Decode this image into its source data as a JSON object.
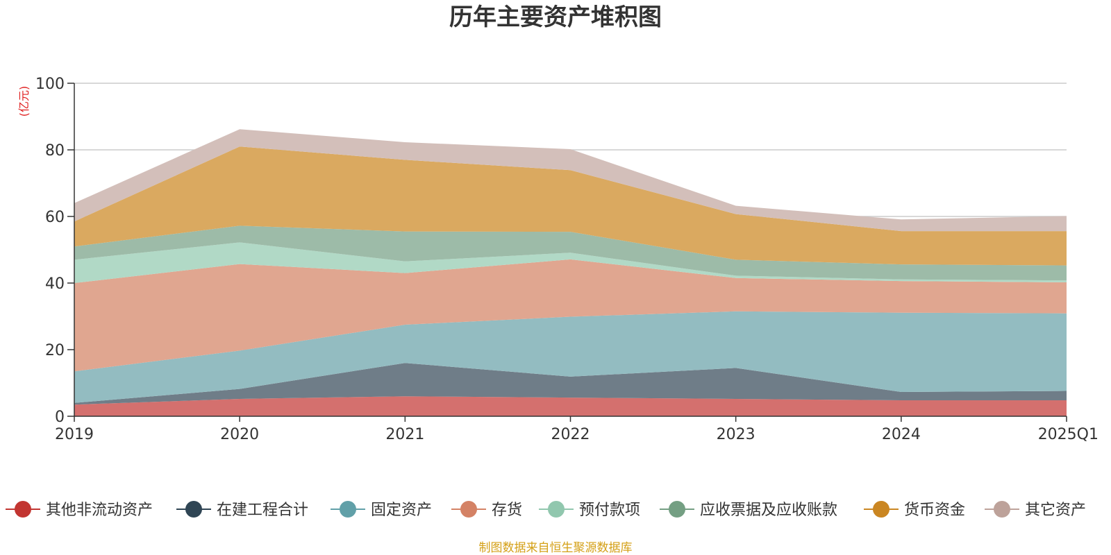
{
  "chart_data": {
    "type": "area",
    "stacked": true,
    "title": "历年主要资产堆积图",
    "unit": "(亿元)",
    "source": "制图数据来自恒生聚源数据库",
    "ylim": [
      0,
      100
    ],
    "yticks": [
      0,
      20,
      40,
      60,
      80,
      100
    ],
    "grid": true,
    "legend_position": "bottom",
    "categories": [
      "2019",
      "2020",
      "2021",
      "2022",
      "2023",
      "2024",
      "2025Q1"
    ],
    "series": [
      {
        "name": "其他非流动资产",
        "color": "#c23531",
        "fill": "#d4706e",
        "values": [
          3.5,
          5.2,
          6.0,
          5.6,
          5.2,
          4.8,
          4.8
        ]
      },
      {
        "name": "在建工程合计",
        "color": "#2f4554",
        "fill": "#6f7d88",
        "values": [
          0.5,
          3.0,
          10.0,
          6.3,
          9.3,
          2.5,
          2.8
        ]
      },
      {
        "name": "固定资产",
        "color": "#61a0a8",
        "fill": "#93bcc1",
        "values": [
          9.5,
          11.5,
          11.5,
          18.0,
          17.0,
          23.8,
          23.3
        ]
      },
      {
        "name": "存货",
        "color": "#d48265",
        "fill": "#e0a690",
        "values": [
          26.5,
          26.0,
          15.5,
          17.2,
          10.0,
          9.5,
          9.3
        ]
      },
      {
        "name": "预付款项",
        "color": "#91c7ae",
        "fill": "#b1d9c6",
        "values": [
          7.0,
          6.5,
          3.5,
          2.0,
          0.7,
          0.5,
          0.6
        ]
      },
      {
        "name": "应收票据及应收账款",
        "color": "#749f83",
        "fill": "#9dbba8",
        "values": [
          4.0,
          5.0,
          9.0,
          6.3,
          4.8,
          4.5,
          4.5
        ]
      },
      {
        "name": "货币资金",
        "color": "#ca8622",
        "fill": "#daa960",
        "values": [
          7.5,
          23.8,
          21.5,
          18.5,
          13.7,
          10.0,
          10.3
        ]
      },
      {
        "name": "其它资产",
        "color": "#bda29a",
        "fill": "#d3bfba",
        "values": [
          5.5,
          5.2,
          5.3,
          6.3,
          2.5,
          3.5,
          4.5
        ]
      }
    ]
  }
}
